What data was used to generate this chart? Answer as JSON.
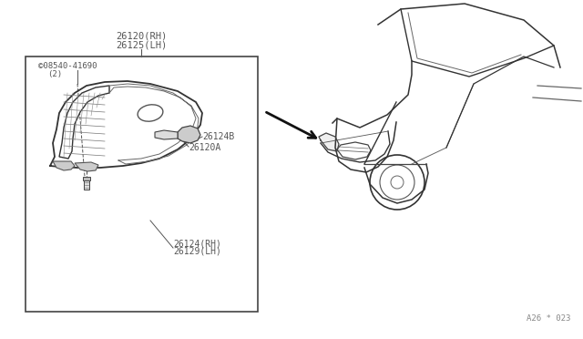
{
  "bg_color": "#ffffff",
  "line_color": "#000000",
  "light_gray": "#aaaaaa",
  "mid_gray": "#888888",
  "text_color": "#555555",
  "title_label1": "26120(RH)",
  "title_label2": "26125(LH)",
  "screw_label1": "©08540-41690",
  "screw_label2": "(2)",
  "part_label_A": "26124B",
  "part_label_B": "26120A",
  "part_label_C": "26124(RH)",
  "part_label_D": "26129(LH)",
  "diagram_ref": "A26 * 023"
}
